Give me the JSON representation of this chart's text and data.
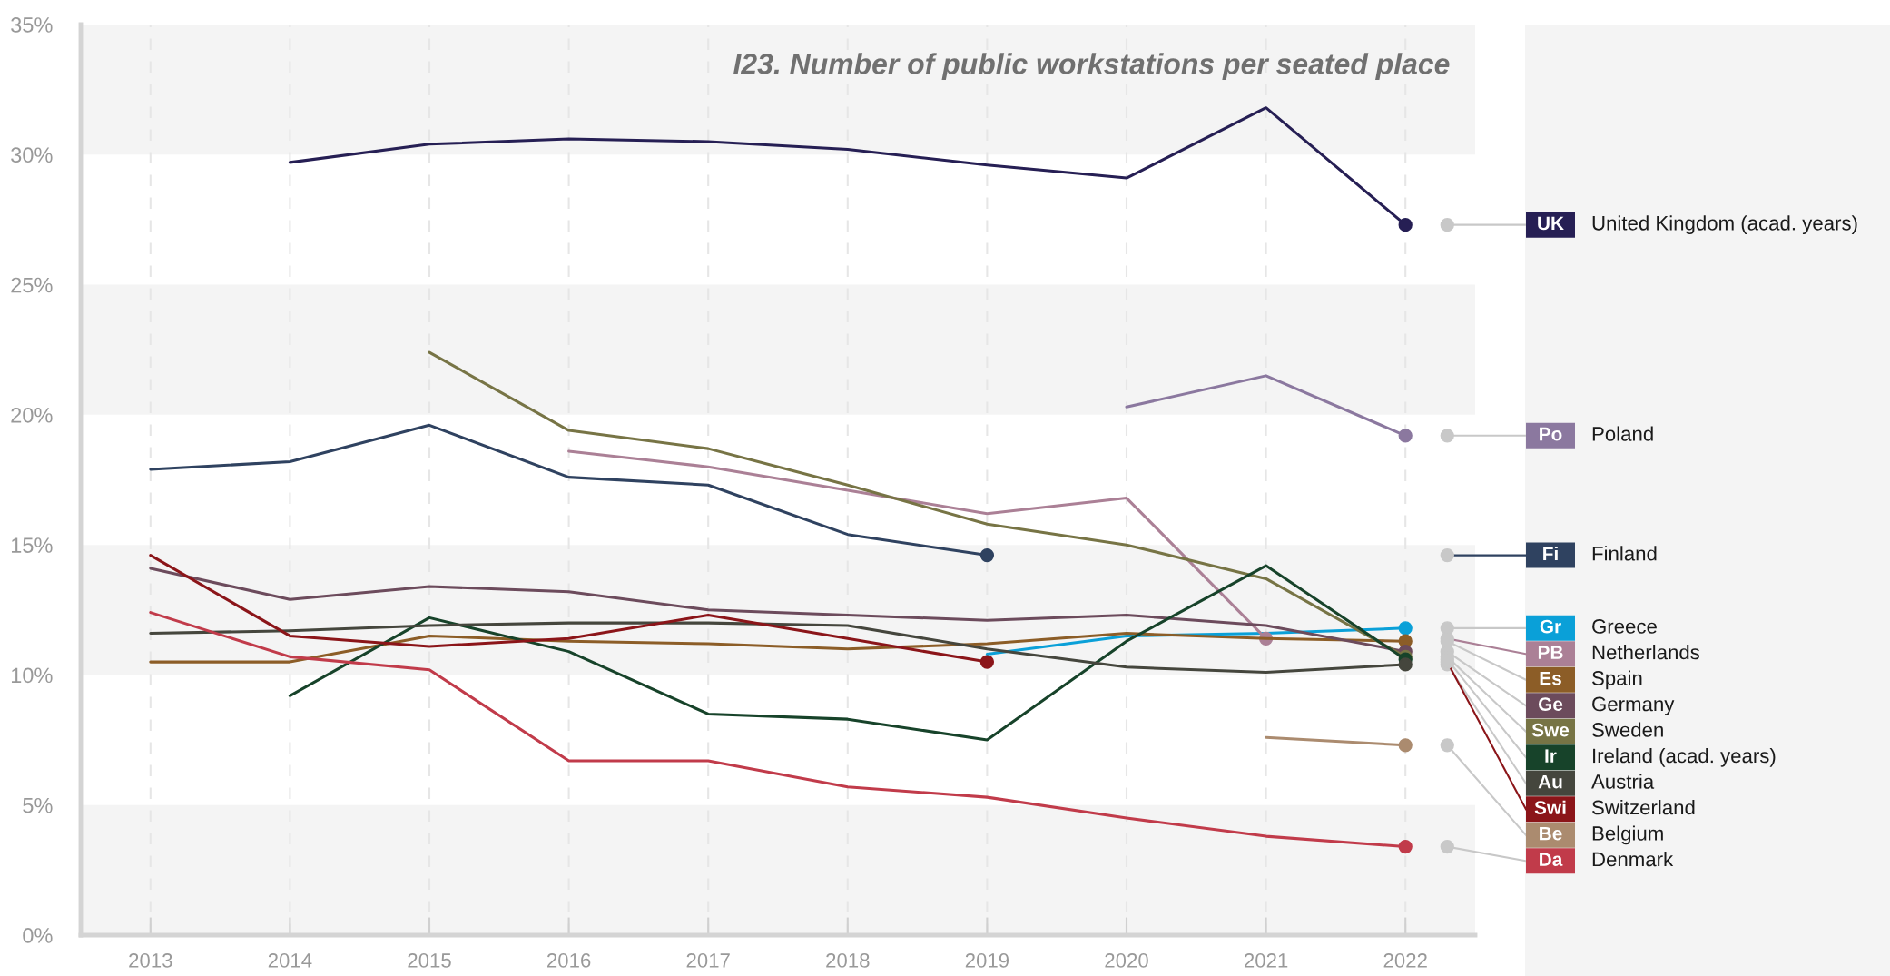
{
  "chart_data": {
    "type": "line",
    "title": "I23. Number of public workstations per seated place",
    "x": [
      2013,
      2014,
      2015,
      2016,
      2017,
      2018,
      2019,
      2020,
      2021,
      2022
    ],
    "xlim": [
      2012.5,
      2022.5
    ],
    "xticks": [
      2013,
      2014,
      2015,
      2016,
      2017,
      2018,
      2019,
      2020,
      2021,
      2022
    ],
    "ylim": [
      0,
      35
    ],
    "yticks": [
      {
        "value": 0,
        "label": "0%"
      },
      {
        "value": 5,
        "label": "5%"
      },
      {
        "value": 10,
        "label": "10%"
      },
      {
        "value": 15,
        "label": "15%"
      },
      {
        "value": 20,
        "label": "20%"
      },
      {
        "value": 25,
        "label": "25%"
      },
      {
        "value": 30,
        "label": "30%"
      },
      {
        "value": 35,
        "label": "35%"
      }
    ],
    "grid": "x",
    "legend": "right",
    "line_style": "solid",
    "bands": [
      {
        "axis": "y",
        "from": 0,
        "to": 5,
        "color": "#f4f4f4"
      },
      {
        "axis": "y",
        "from": 10,
        "to": 15,
        "color": "#f4f4f4"
      },
      {
        "axis": "y",
        "from": 20,
        "to": 25,
        "color": "#f4f4f4"
      },
      {
        "axis": "y",
        "from": 30,
        "to": 35,
        "color": "#f4f4f4"
      }
    ],
    "annotations": [
      "UK",
      "Po",
      "Fi",
      "Gr",
      "PB",
      "Es",
      "Ge",
      "Swe",
      "Ir",
      "Au",
      "Swi",
      "Be",
      "Da"
    ],
    "series": [
      {
        "name": "United Kingdom (acad. years)",
        "color": "#261f54",
        "values": [
          null,
          29.7,
          30.4,
          30.6,
          30.5,
          30.2,
          29.6,
          29.1,
          31.8,
          27.3
        ]
      },
      {
        "name": "Poland",
        "color": "#8b789f",
        "values": [
          null,
          null,
          null,
          null,
          null,
          null,
          null,
          20.3,
          21.5,
          19.2
        ]
      },
      {
        "name": "Finland",
        "color": "#2f4260",
        "values": [
          17.9,
          18.2,
          19.6,
          17.6,
          17.3,
          15.4,
          14.6,
          null,
          null,
          null
        ]
      },
      {
        "name": "Greece",
        "color": "#0aa0d8",
        "values": [
          null,
          null,
          null,
          null,
          null,
          null,
          10.8,
          11.5,
          11.6,
          11.8
        ]
      },
      {
        "name": "Netherlands",
        "color": "#ab8096",
        "values": [
          null,
          null,
          null,
          18.6,
          18.0,
          17.1,
          16.2,
          16.8,
          11.4,
          null
        ]
      },
      {
        "name": "Spain",
        "color": "#8c5d27",
        "values": [
          10.5,
          10.5,
          11.5,
          11.3,
          11.2,
          11.0,
          11.2,
          11.6,
          11.4,
          11.3
        ]
      },
      {
        "name": "Germany",
        "color": "#6c4b5c",
        "values": [
          14.1,
          12.9,
          13.4,
          13.2,
          12.5,
          12.3,
          12.1,
          12.3,
          11.9,
          10.9
        ]
      },
      {
        "name": "Sweden",
        "color": "#777445",
        "values": [
          null,
          null,
          22.4,
          19.4,
          18.7,
          17.3,
          15.8,
          15.0,
          13.7,
          10.7
        ]
      },
      {
        "name": "Ireland (acad. years)",
        "color": "#17432a",
        "values": [
          null,
          9.2,
          12.2,
          10.9,
          8.5,
          8.3,
          7.5,
          11.3,
          14.2,
          10.6
        ]
      },
      {
        "name": "Austria",
        "color": "#45463d",
        "values": [
          11.6,
          11.7,
          11.9,
          12.0,
          12.0,
          11.9,
          11.0,
          10.3,
          10.1,
          10.4
        ]
      },
      {
        "name": "Switzerland",
        "color": "#8b1519",
        "values": [
          14.6,
          11.5,
          11.1,
          11.4,
          12.3,
          11.4,
          10.5,
          null,
          null,
          null
        ]
      },
      {
        "name": "Belgium",
        "color": "#ab8b6f",
        "values": [
          null,
          null,
          null,
          null,
          null,
          null,
          null,
          null,
          7.6,
          7.3
        ]
      },
      {
        "name": "Denmark",
        "color": "#c13b4a",
        "values": [
          12.4,
          10.7,
          10.2,
          6.7,
          6.7,
          5.7,
          5.3,
          4.5,
          3.8,
          3.4
        ]
      }
    ]
  }
}
